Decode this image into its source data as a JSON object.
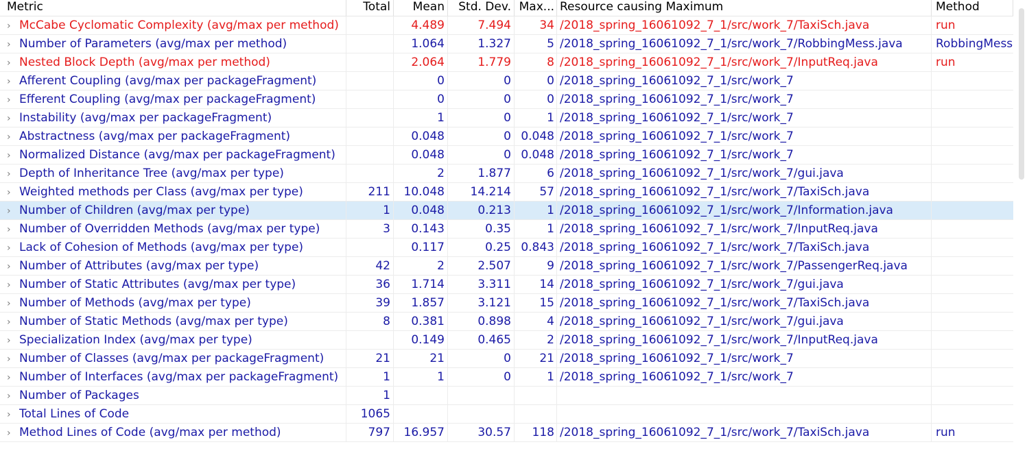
{
  "headers": {
    "metric": "Metric",
    "total": "Total",
    "mean": "Mean",
    "std_dev": "Std. Dev.",
    "max": "Max...",
    "resource": "Resource causing Maximum",
    "method": "Method"
  },
  "chevron_icon": "›",
  "colors": {
    "normal_text": "#1a1aa6",
    "warning_text": "#e51b1b",
    "selected_row_bg": "#d9ebf9"
  },
  "rows": [
    {
      "metric": "McCabe Cyclomatic Complexity (avg/max per method)",
      "total": "",
      "mean": "4.489",
      "std": "7.494",
      "max": "34",
      "resource": "/2018_spring_16061092_7_1/src/work_7/TaxiSch.java",
      "method": "run",
      "warning": true
    },
    {
      "metric": "Number of Parameters (avg/max per method)",
      "total": "",
      "mean": "1.064",
      "std": "1.327",
      "max": "5",
      "resource": "/2018_spring_16061092_7_1/src/work_7/RobbingMess.java",
      "method": "RobbingMess",
      "warning": false
    },
    {
      "metric": "Nested Block Depth (avg/max per method)",
      "total": "",
      "mean": "2.064",
      "std": "1.779",
      "max": "8",
      "resource": "/2018_spring_16061092_7_1/src/work_7/InputReq.java",
      "method": "run",
      "warning": true
    },
    {
      "metric": "Afferent Coupling (avg/max per packageFragment)",
      "total": "",
      "mean": "0",
      "std": "0",
      "max": "0",
      "resource": "/2018_spring_16061092_7_1/src/work_7",
      "method": "",
      "warning": false
    },
    {
      "metric": "Efferent Coupling (avg/max per packageFragment)",
      "total": "",
      "mean": "0",
      "std": "0",
      "max": "0",
      "resource": "/2018_spring_16061092_7_1/src/work_7",
      "method": "",
      "warning": false
    },
    {
      "metric": "Instability (avg/max per packageFragment)",
      "total": "",
      "mean": "1",
      "std": "0",
      "max": "1",
      "resource": "/2018_spring_16061092_7_1/src/work_7",
      "method": "",
      "warning": false
    },
    {
      "metric": "Abstractness (avg/max per packageFragment)",
      "total": "",
      "mean": "0.048",
      "std": "0",
      "max": "0.048",
      "resource": "/2018_spring_16061092_7_1/src/work_7",
      "method": "",
      "warning": false
    },
    {
      "metric": "Normalized Distance (avg/max per packageFragment)",
      "total": "",
      "mean": "0.048",
      "std": "0",
      "max": "0.048",
      "resource": "/2018_spring_16061092_7_1/src/work_7",
      "method": "",
      "warning": false
    },
    {
      "metric": "Depth of Inheritance Tree (avg/max per type)",
      "total": "",
      "mean": "2",
      "std": "1.877",
      "max": "6",
      "resource": "/2018_spring_16061092_7_1/src/work_7/gui.java",
      "method": "",
      "warning": false
    },
    {
      "metric": "Weighted methods per Class (avg/max per type)",
      "total": "211",
      "mean": "10.048",
      "std": "14.214",
      "max": "57",
      "resource": "/2018_spring_16061092_7_1/src/work_7/TaxiSch.java",
      "method": "",
      "warning": false
    },
    {
      "metric": "Number of Children (avg/max per type)",
      "total": "1",
      "mean": "0.048",
      "std": "0.213",
      "max": "1",
      "resource": "/2018_spring_16061092_7_1/src/work_7/Information.java",
      "method": "",
      "warning": false,
      "selected": true
    },
    {
      "metric": "Number of Overridden Methods (avg/max per type)",
      "total": "3",
      "mean": "0.143",
      "std": "0.35",
      "max": "1",
      "resource": "/2018_spring_16061092_7_1/src/work_7/InputReq.java",
      "method": "",
      "warning": false
    },
    {
      "metric": "Lack of Cohesion of Methods (avg/max per type)",
      "total": "",
      "mean": "0.117",
      "std": "0.25",
      "max": "0.843",
      "resource": "/2018_spring_16061092_7_1/src/work_7/TaxiSch.java",
      "method": "",
      "warning": false
    },
    {
      "metric": "Number of Attributes (avg/max per type)",
      "total": "42",
      "mean": "2",
      "std": "2.507",
      "max": "9",
      "resource": "/2018_spring_16061092_7_1/src/work_7/PassengerReq.java",
      "method": "",
      "warning": false
    },
    {
      "metric": "Number of Static Attributes (avg/max per type)",
      "total": "36",
      "mean": "1.714",
      "std": "3.311",
      "max": "14",
      "resource": "/2018_spring_16061092_7_1/src/work_7/gui.java",
      "method": "",
      "warning": false
    },
    {
      "metric": "Number of Methods (avg/max per type)",
      "total": "39",
      "mean": "1.857",
      "std": "3.121",
      "max": "15",
      "resource": "/2018_spring_16061092_7_1/src/work_7/TaxiSch.java",
      "method": "",
      "warning": false
    },
    {
      "metric": "Number of Static Methods (avg/max per type)",
      "total": "8",
      "mean": "0.381",
      "std": "0.898",
      "max": "4",
      "resource": "/2018_spring_16061092_7_1/src/work_7/gui.java",
      "method": "",
      "warning": false
    },
    {
      "metric": "Specialization Index (avg/max per type)",
      "total": "",
      "mean": "0.149",
      "std": "0.465",
      "max": "2",
      "resource": "/2018_spring_16061092_7_1/src/work_7/InputReq.java",
      "method": "",
      "warning": false
    },
    {
      "metric": "Number of Classes (avg/max per packageFragment)",
      "total": "21",
      "mean": "21",
      "std": "0",
      "max": "21",
      "resource": "/2018_spring_16061092_7_1/src/work_7",
      "method": "",
      "warning": false
    },
    {
      "metric": "Number of Interfaces (avg/max per packageFragment)",
      "total": "1",
      "mean": "1",
      "std": "0",
      "max": "1",
      "resource": "/2018_spring_16061092_7_1/src/work_7",
      "method": "",
      "warning": false
    },
    {
      "metric": "Number of Packages",
      "total": "1",
      "mean": "",
      "std": "",
      "max": "",
      "resource": "",
      "method": "",
      "warning": false
    },
    {
      "metric": "Total Lines of Code",
      "total": "1065",
      "mean": "",
      "std": "",
      "max": "",
      "resource": "",
      "method": "",
      "warning": false
    },
    {
      "metric": "Method Lines of Code (avg/max per method)",
      "total": "797",
      "mean": "16.957",
      "std": "30.57",
      "max": "118",
      "resource": "/2018_spring_16061092_7_1/src/work_7/TaxiSch.java",
      "method": "run",
      "warning": false
    }
  ]
}
